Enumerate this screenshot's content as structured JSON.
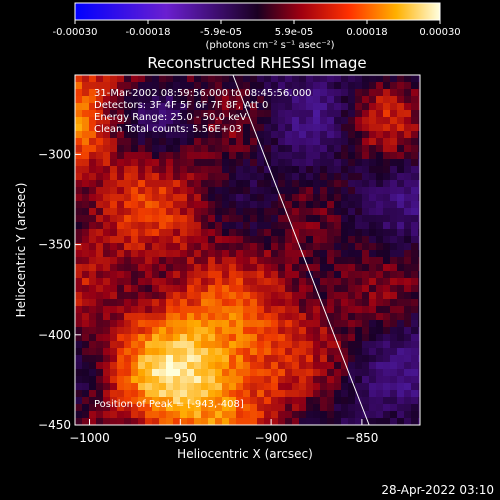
{
  "colorbar": {
    "ticks": [
      "-0.00030",
      "-0.00018",
      "-5.9e-05",
      "5.9e-05",
      "0.00018",
      "0.00030"
    ],
    "unit_label": "(photons cm⁻² s⁻¹ asec⁻²)",
    "range": [
      -0.0003,
      0.0003
    ]
  },
  "chart_data": {
    "type": "heatmap",
    "title": "Reconstructed RHESSI Image",
    "xlabel": "Heliocentric X (arcsec)",
    "ylabel": "Heliocentric Y (arcsec)",
    "xlim": [
      -1008,
      -818
    ],
    "ylim": [
      -450,
      -256
    ],
    "x_ticks": [
      -1000,
      -950,
      -900,
      -850
    ],
    "y_ticks": [
      -300,
      -350,
      -400,
      -450
    ],
    "x_tick_labels": [
      "−1000",
      "−950",
      "−900",
      "−850"
    ],
    "y_tick_labels": [
      "−300",
      "−350",
      "−400",
      "−450"
    ],
    "limb_line": [
      [
        -921,
        -256
      ],
      [
        -846,
        -450
      ]
    ],
    "peak": {
      "x": -943,
      "y": -408
    }
  },
  "annotation": {
    "line1": "31-Mar-2002 08:59:56.000 to 08:45:56.000",
    "line2": "Detectors: 3F 4F 5F 6F 7F 8F, Att 0",
    "line3": "Energy Range: 25.0 - 50.0 keV",
    "line4": "Clean    Total counts: 5.56E+03",
    "peak_label": "Position of Peak = [-943,-408]"
  },
  "footer": {
    "timestamp": "28-Apr-2022 03:10"
  }
}
